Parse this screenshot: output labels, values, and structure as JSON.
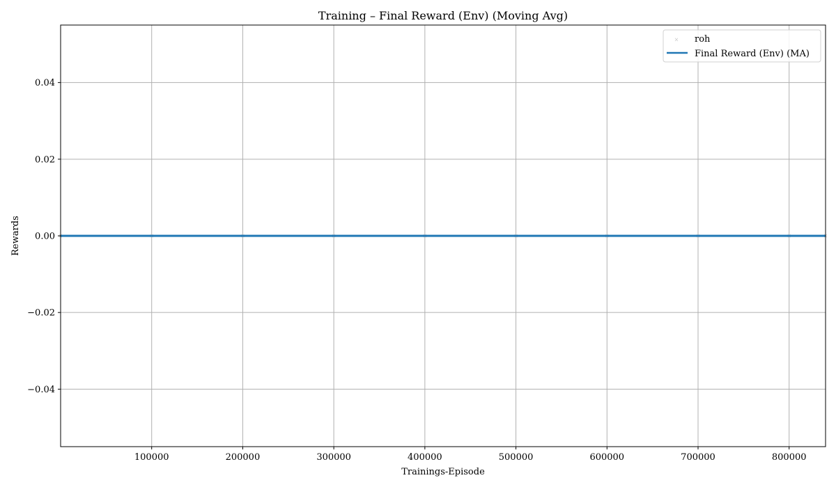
{
  "chart_data": {
    "type": "line",
    "title": "Training – Final Reward (Env) (Moving Avg)",
    "xlabel": "Trainings-Episode",
    "ylabel": "Rewards",
    "xlim": [
      1,
      840000
    ],
    "ylim": [
      -0.055,
      0.055
    ],
    "xticks": [
      100000,
      200000,
      300000,
      400000,
      500000,
      600000,
      700000,
      800000
    ],
    "xtick_labels": [
      "100000",
      "200000",
      "300000",
      "400000",
      "500000",
      "600000",
      "700000",
      "800000"
    ],
    "yticks": [
      0.04,
      0.02,
      0.0,
      -0.02,
      -0.04
    ],
    "ytick_labels": [
      "0.04",
      "0.02",
      "0.00",
      "−0.02",
      "−0.04"
    ],
    "grid": true,
    "legend_position": "top-right",
    "series": [
      {
        "name": "roh",
        "kind": "scatter",
        "color": "#b0b0b0",
        "x": [
          1,
          100000,
          200000,
          300000,
          400000,
          500000,
          600000,
          700000,
          800000,
          840000
        ],
        "y": [
          0,
          0,
          0,
          0,
          0,
          0,
          0,
          0,
          0,
          0
        ]
      },
      {
        "name": "Final Reward (Env) (MA)",
        "kind": "line",
        "color": "#1f77b4",
        "x": [
          1,
          840000
        ],
        "y": [
          0,
          0
        ]
      }
    ]
  }
}
